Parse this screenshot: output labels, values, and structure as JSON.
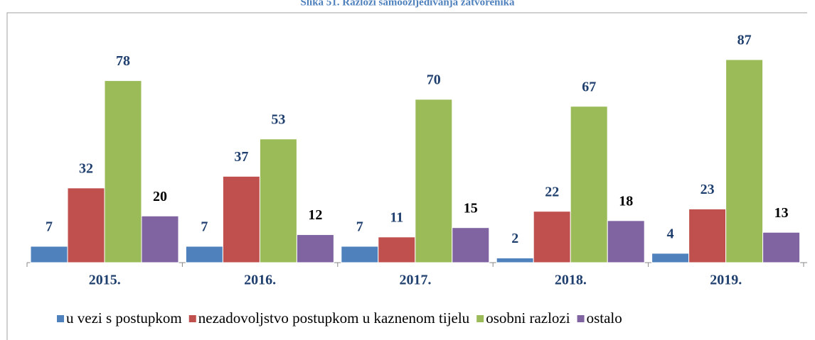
{
  "chart_data": {
    "type": "bar",
    "title": "Slika 51. Razlozi samoozljeđivanja zatvorenika",
    "categories": [
      "2015.",
      "2016.",
      "2017.",
      "2018.",
      "2019."
    ],
    "series": [
      {
        "name": "u vezi s postupkom",
        "color": "#4f81bd",
        "values": [
          7,
          7,
          7,
          2,
          4
        ]
      },
      {
        "name": "nezadovoljstvo postupkom u kaznenom tijelu",
        "color": "#c0504d",
        "values": [
          32,
          37,
          11,
          22,
          23
        ]
      },
      {
        "name": "osobni razlozi",
        "color": "#9bbb59",
        "values": [
          78,
          53,
          70,
          67,
          87
        ]
      },
      {
        "name": "ostalo",
        "color": "#8064a2",
        "values": [
          20,
          12,
          15,
          18,
          13
        ]
      }
    ],
    "legend": "bottom"
  }
}
